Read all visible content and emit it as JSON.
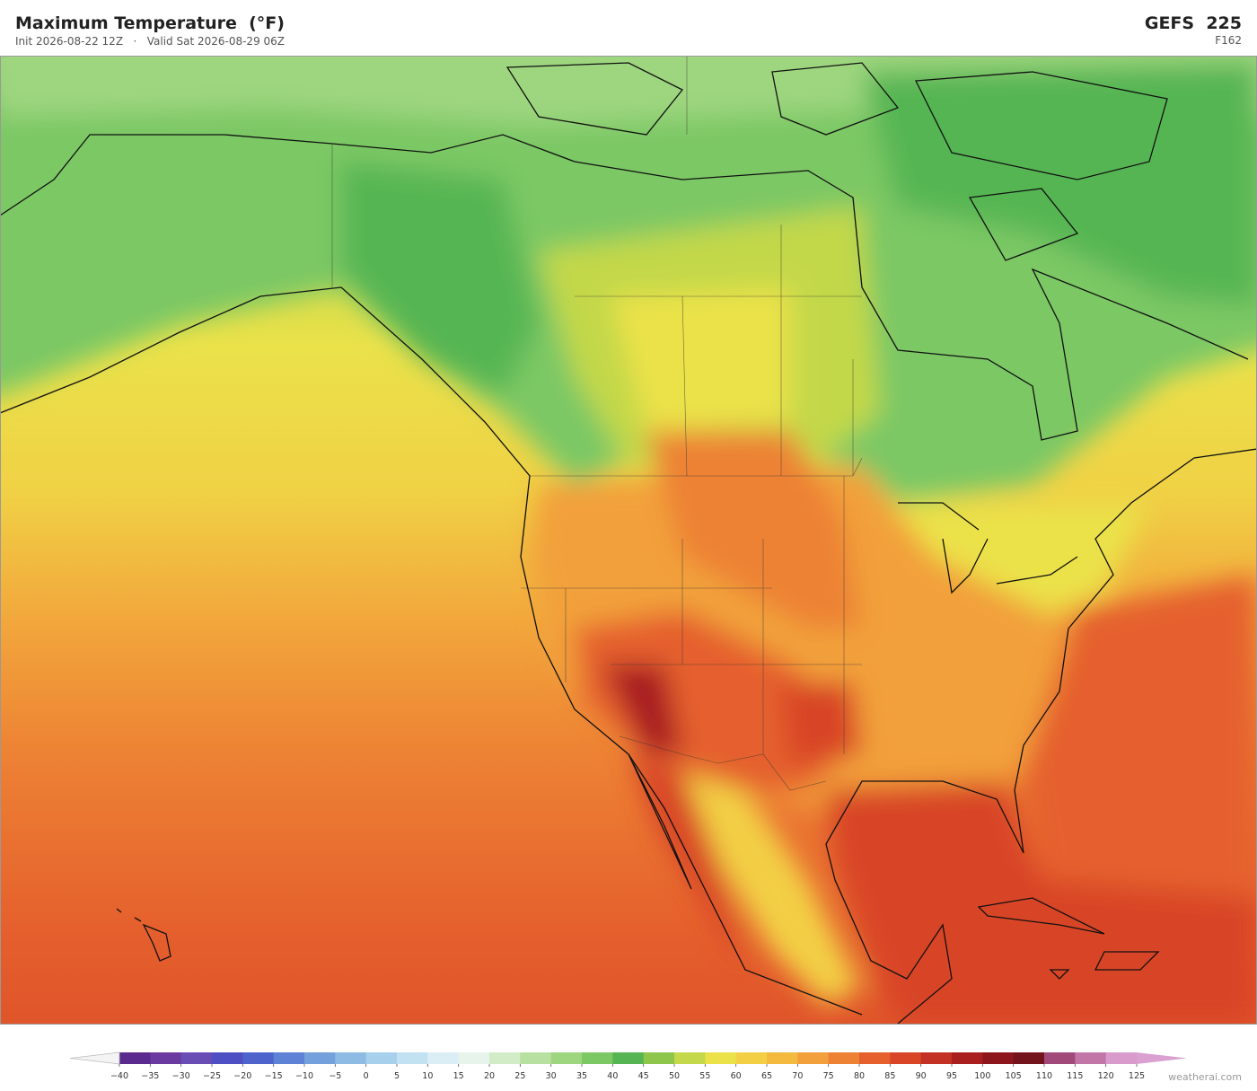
{
  "header": {
    "title": "Maximum Temperature  (°F)",
    "subtitle": "Init 2026-08-22 12Z   ·   Valid Sat 2026-08-29 06Z",
    "model": "GEFS  225",
    "forecast_hour": "F162"
  },
  "colorbar": {
    "ticks": [
      {
        "value": -40,
        "label": "−40"
      },
      {
        "value": -35,
        "label": "−35"
      },
      {
        "value": -30,
        "label": "−30"
      },
      {
        "value": -25,
        "label": "−25"
      },
      {
        "value": -20,
        "label": "−20"
      },
      {
        "value": -15,
        "label": "−15"
      },
      {
        "value": -10,
        "label": "−10"
      },
      {
        "value": -5,
        "label": "−5"
      },
      0,
      5,
      10,
      15,
      20,
      25,
      30,
      35,
      40,
      45,
      50,
      55,
      60,
      65,
      70,
      75,
      80,
      85,
      90,
      95,
      100,
      105,
      110,
      115,
      120,
      125
    ],
    "colors": [
      "#5b2a8e",
      "#6a3aa0",
      "#6a4cb5",
      "#4f4fc4",
      "#4e63cc",
      "#5e82d6",
      "#74a0dc",
      "#8ebbe3",
      "#a7d0ec",
      "#c2e1f1",
      "#dbeef5",
      "#e6f4ec",
      "#d3ecc8",
      "#b8e0a0",
      "#9ed67f",
      "#7bc865",
      "#56b552",
      "#8dc64b",
      "#c3d84a",
      "#ebe24a",
      "#f3cf45",
      "#f4b93f",
      "#f2a03b",
      "#ed8234",
      "#e5602d",
      "#d84527",
      "#c33024",
      "#a91f20",
      "#8d161c",
      "#73141c",
      "#a14a7a",
      "#c276a8",
      "#d99bcb"
    ],
    "under_color": "#f4f4f4",
    "over_color": "#d9a0d0"
  },
  "footer": {
    "credit": "weatherai.com"
  }
}
